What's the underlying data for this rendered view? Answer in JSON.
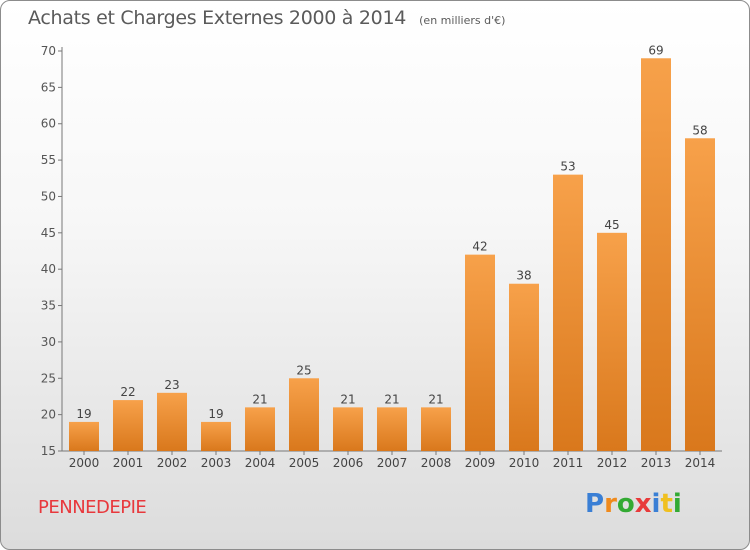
{
  "header": {
    "title": "Achats et Charges Externes 2000 à 2014",
    "unit": "(en milliers d'€)"
  },
  "commune": "PENNEDEPIE",
  "brand": {
    "letters": [
      "P",
      "r",
      "o",
      "x",
      "i",
      "t",
      "i"
    ],
    "colors": [
      "#3a7fd5",
      "#f08a1c",
      "#33aa33",
      "#e83a3a",
      "#3a7fd5",
      "#f0c020",
      "#33aa33"
    ]
  },
  "chart_data": {
    "type": "bar",
    "title": "Achats et Charges Externes 2000 à 2014",
    "subtitle": "(en milliers d'€)",
    "categories": [
      "2000",
      "2001",
      "2002",
      "2003",
      "2004",
      "2005",
      "2006",
      "2007",
      "2008",
      "2009",
      "2010",
      "2011",
      "2012",
      "2013",
      "2014"
    ],
    "values": [
      19,
      22,
      23,
      19,
      21,
      25,
      21,
      21,
      21,
      42,
      38,
      53,
      45,
      69,
      58
    ],
    "ylim": [
      15,
      70
    ],
    "yticks": [
      15,
      20,
      25,
      30,
      35,
      40,
      45,
      50,
      55,
      60,
      65,
      70
    ],
    "grid": false,
    "bar_color": "#f08a28"
  }
}
